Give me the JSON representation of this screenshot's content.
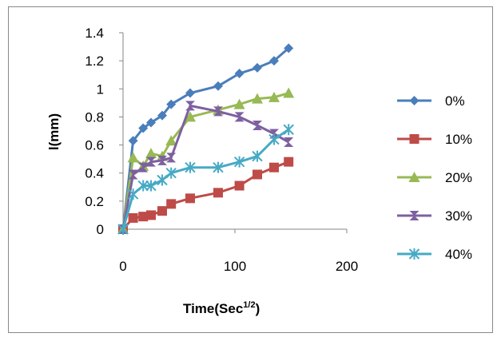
{
  "chart_data": {
    "type": "line",
    "title": "",
    "xlabel": "Time(Sec",
    "xlabel_superscript": "1/2",
    "xlabel_close": ")",
    "ylabel": "l(mm)",
    "xlim": [
      0,
      200
    ],
    "ylim": [
      0,
      1.4
    ],
    "x_ticks": [
      "0",
      "100",
      "200"
    ],
    "y_ticks": [
      "0",
      "0.2",
      "0.4",
      "0.6",
      "0.8",
      "1",
      "1.2",
      "1.4"
    ],
    "grid": false,
    "legend_position": "right",
    "series": [
      {
        "name": "0%",
        "color": "#4a7ebb",
        "marker": "diamond",
        "x": [
          0,
          9,
          18,
          25,
          35,
          43,
          60,
          85,
          104,
          120,
          135,
          148
        ],
        "y": [
          0,
          0.63,
          0.72,
          0.76,
          0.81,
          0.89,
          0.97,
          1.02,
          1.11,
          1.15,
          1.2,
          1.29
        ]
      },
      {
        "name": "10%",
        "color": "#be4b48",
        "marker": "square",
        "x": [
          0,
          9,
          18,
          25,
          35,
          43,
          60,
          85,
          104,
          120,
          135,
          148
        ],
        "y": [
          0,
          0.08,
          0.09,
          0.1,
          0.13,
          0.18,
          0.22,
          0.26,
          0.31,
          0.39,
          0.44,
          0.48
        ]
      },
      {
        "name": "20%",
        "color": "#98b954",
        "marker": "triangle",
        "x": [
          0,
          9,
          18,
          25,
          35,
          43,
          60,
          85,
          104,
          120,
          135,
          148
        ],
        "y": [
          0,
          0.51,
          0.45,
          0.54,
          0.52,
          0.63,
          0.8,
          0.85,
          0.89,
          0.93,
          0.94,
          0.97
        ]
      },
      {
        "name": "30%",
        "color": "#7d60a0",
        "marker": "hourglass",
        "x": [
          0,
          9,
          18,
          25,
          35,
          43,
          60,
          85,
          104,
          120,
          135,
          148
        ],
        "y": [
          0,
          0.39,
          0.44,
          0.48,
          0.49,
          0.51,
          0.88,
          0.84,
          0.8,
          0.74,
          0.68,
          0.62
        ]
      },
      {
        "name": "40%",
        "color": "#46aac5",
        "marker": "star",
        "x": [
          0,
          9,
          18,
          25,
          35,
          43,
          60,
          85,
          104,
          120,
          135,
          148
        ],
        "y": [
          0,
          0.25,
          0.31,
          0.31,
          0.35,
          0.4,
          0.44,
          0.44,
          0.48,
          0.52,
          0.64,
          0.71
        ]
      }
    ]
  }
}
